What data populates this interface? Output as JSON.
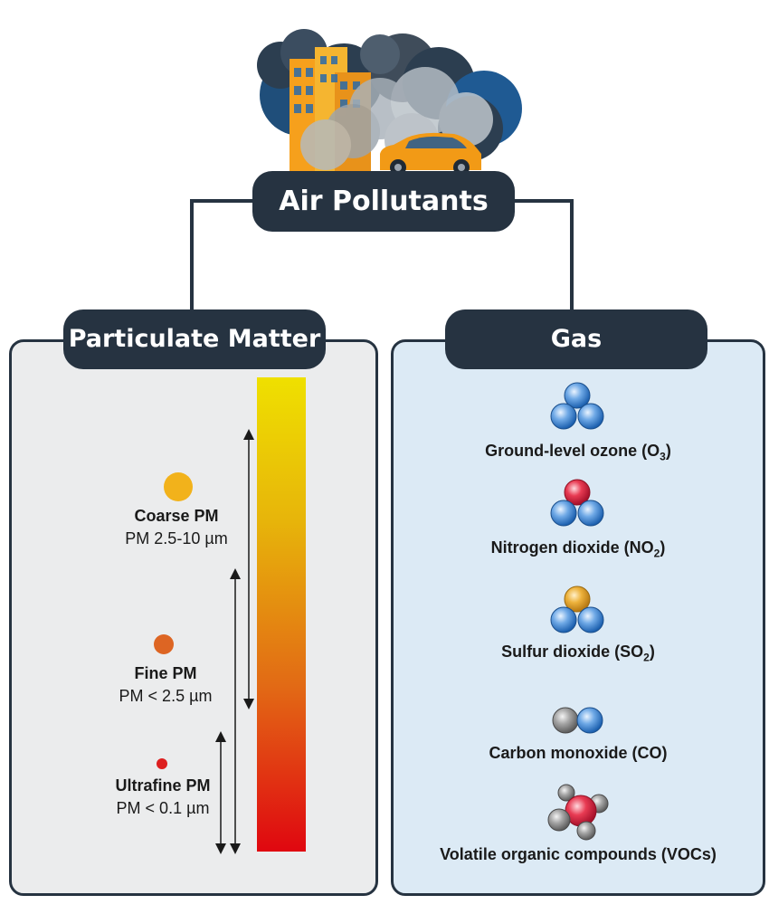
{
  "header": {
    "title": "Air Pollutants"
  },
  "particulate": {
    "title": "Particulate Matter",
    "items": [
      {
        "name": "Coarse PM",
        "size_label": "PM 2.5-10 µm",
        "color": "#F2B21B"
      },
      {
        "name": "Fine PM",
        "size_label": "PM < 2.5 µm",
        "color": "#DD6523"
      },
      {
        "name": "Ultrafine PM",
        "size_label": "PM < 0.1 µm",
        "color": "#DD1F1F"
      }
    ],
    "gradient": {
      "top_color": "#EFE000",
      "bottom_color": "#E00710"
    }
  },
  "gas": {
    "title": "Gas",
    "items": [
      {
        "label": "Ground-level ozone (O",
        "sub": "3",
        "label_end": ")",
        "molecule": "ozone-molecule-icon"
      },
      {
        "label": "Nitrogen dioxide (NO",
        "sub": "2",
        "label_end": ")",
        "molecule": "nitrogen-dioxide-molecule-icon"
      },
      {
        "label": "Sulfur dioxide (SO",
        "sub": "2",
        "label_end": ")",
        "molecule": "sulfur-dioxide-molecule-icon"
      },
      {
        "label": "Carbon monoxide (CO)",
        "sub": "",
        "label_end": "",
        "molecule": "carbon-monoxide-molecule-icon"
      },
      {
        "label": "Volatile organic compounds (VOCs)",
        "sub": "",
        "label_end": "",
        "molecule": "voc-molecule-icon"
      }
    ]
  },
  "colors": {
    "dark": "#263341",
    "pm_panel_bg": "#EBECED",
    "gas_panel_bg": "#DCEAF5",
    "atom_blue": "#2D78C8",
    "atom_red": "#D81E38",
    "atom_orange": "#E2A020",
    "atom_gray": "#8A8A8A"
  }
}
